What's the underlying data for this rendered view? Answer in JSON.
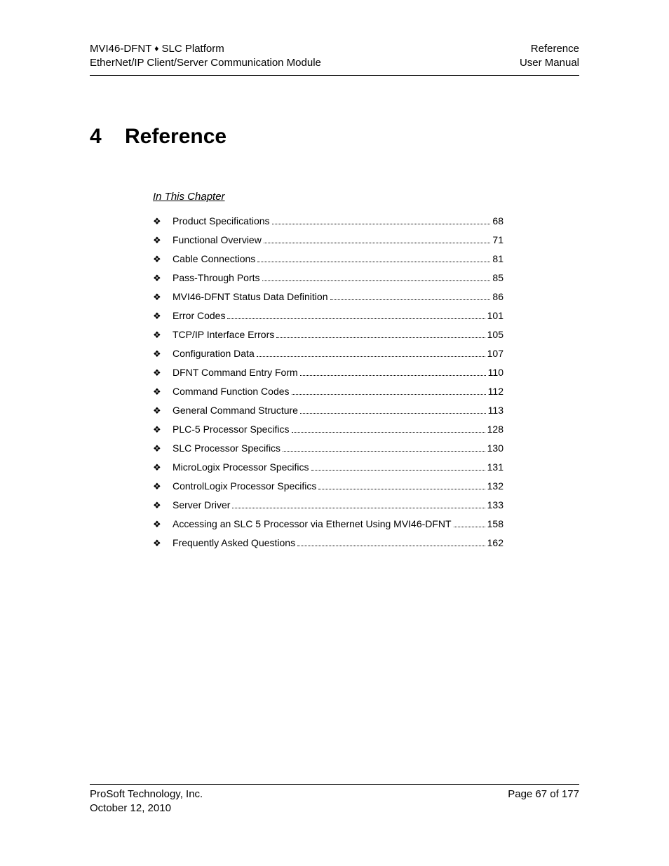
{
  "header": {
    "left_line1_a": "MVI46-DFNT ",
    "left_line1_b": " SLC Platform",
    "left_line2": "EtherNet/IP Client/Server Communication Module",
    "right_line1": "Reference",
    "right_line2": "User Manual"
  },
  "chapter": {
    "number": "4",
    "title": "Reference"
  },
  "in_this_chapter_label": "In This Chapter",
  "toc": [
    {
      "label": "Product Specifications",
      "page": "68"
    },
    {
      "label": "Functional Overview",
      "page": "71"
    },
    {
      "label": "Cable Connections",
      "page": "81"
    },
    {
      "label": "Pass-Through Ports",
      "page": "85"
    },
    {
      "label": "MVI46-DFNT Status Data Definition",
      "page": "86"
    },
    {
      "label": "Error Codes",
      "page": "101"
    },
    {
      "label": "TCP/IP Interface Errors",
      "page": "105"
    },
    {
      "label": "Configuration Data",
      "page": "107"
    },
    {
      "label": "DFNT Command Entry Form",
      "page": "110"
    },
    {
      "label": "Command Function Codes",
      "page": "112"
    },
    {
      "label": "General Command Structure",
      "page": "113"
    },
    {
      "label": "PLC-5 Processor Specifics",
      "page": "128"
    },
    {
      "label": "SLC Processor Specifics",
      "page": "130"
    },
    {
      "label": "MicroLogix Processor Specifics",
      "page": "131"
    },
    {
      "label": "ControlLogix Processor Specifics",
      "page": "132"
    },
    {
      "label": "Server Driver",
      "page": "133"
    },
    {
      "label": "Accessing an SLC 5 Processor via Ethernet Using MVI46-DFNT",
      "page": "158"
    },
    {
      "label": "Frequently Asked Questions",
      "page": "162"
    }
  ],
  "footer": {
    "left_line1": "ProSoft Technology, Inc.",
    "left_line2": "October 12, 2010",
    "right_line1": "Page 67 of 177"
  }
}
